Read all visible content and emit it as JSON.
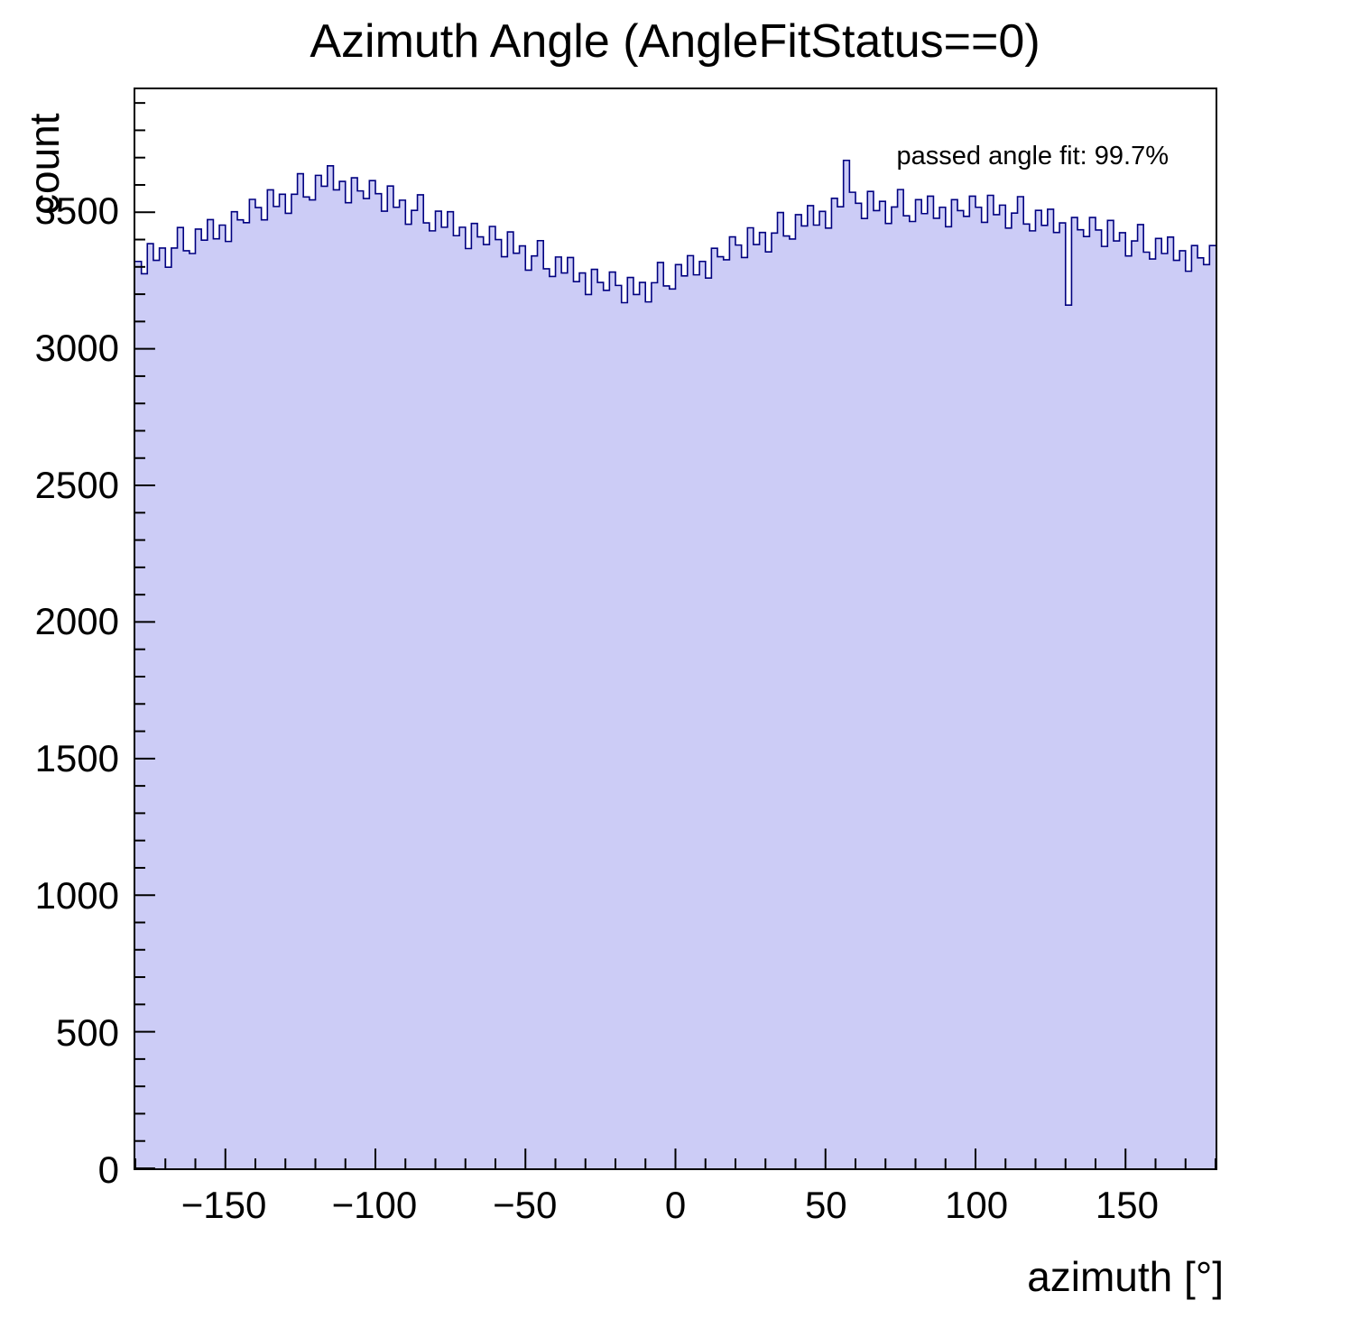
{
  "chart_data": {
    "type": "bar",
    "title": "Azimuth Angle (AngleFitStatus==0)",
    "xlabel": "azimuth [°]",
    "ylabel": "count",
    "annotation": "passed angle fit: 99.7%",
    "xlim": [
      -180,
      180
    ],
    "ylim": [
      0,
      3950
    ],
    "grid": false,
    "legend_position": "none",
    "fill_color": "#ccccf6",
    "line_color": "#000080",
    "x_start": -180,
    "bin_width": 2,
    "values": [
      3320,
      3275,
      3385,
      3324,
      3369,
      3299,
      3369,
      3444,
      3359,
      3349,
      3438,
      3398,
      3473,
      3403,
      3453,
      3393,
      3502,
      3472,
      3462,
      3547,
      3517,
      3472,
      3582,
      3521,
      3566,
      3496,
      3566,
      3641,
      3556,
      3545,
      3635,
      3595,
      3670,
      3582,
      3613,
      3535,
      3626,
      3578,
      3550,
      3616,
      3568,
      3504,
      3596,
      3518,
      3544,
      3456,
      3507,
      3564,
      3461,
      3432,
      3504,
      3445,
      3502,
      3414,
      3445,
      3367,
      3459,
      3410,
      3382,
      3448,
      3400,
      3337,
      3428,
      3350,
      3377,
      3288,
      3340,
      3396,
      3293,
      3265,
      3336,
      3278,
      3334,
      3246,
      3278,
      3199,
      3291,
      3243,
      3214,
      3281,
      3232,
      3169,
      3261,
      3199,
      3243,
      3172,
      3242,
      3316,
      3230,
      3219,
      3308,
      3267,
      3341,
      3271,
      3320,
      3259,
      3368,
      3337,
      3326,
      3410,
      3380,
      3334,
      3443,
      3382,
      3426,
      3355,
      3424,
      3499,
      3413,
      3402,
      3491,
      3450,
      3524,
      3453,
      3503,
      3442,
      3551,
      3520,
      3690,
      3573,
      3533,
      3477,
      3576,
      3506,
      3540,
      3459,
      3519,
      3583,
      3487,
      3466,
      3546,
      3495,
      3559,
      3478,
      3518,
      3447,
      3546,
      3506,
      3485,
      3559,
      3518,
      3463,
      3562,
      3491,
      3526,
      3442,
      3497,
      3557,
      3457,
      3432,
      3507,
      3452,
      3511,
      3426,
      3461,
      3160,
      3481,
      3436,
      3411,
      3481,
      3435,
      3375,
      3470,
      3395,
      3425,
      3340,
      3395,
      3455,
      3354,
      3329,
      3404,
      3349,
      3409,
      3324,
      3359,
      3284,
      3378,
      3333,
      3308,
      3378
    ],
    "x_major_ticks": [
      -150,
      -100,
      -50,
      0,
      50,
      100,
      150
    ],
    "x_tick_labels": [
      "−150",
      "−100",
      "−50",
      "0",
      "50",
      "100",
      "150"
    ],
    "x_minor_step": 10,
    "y_major_ticks": [
      0,
      500,
      1000,
      1500,
      2000,
      2500,
      3000,
      3500
    ],
    "y_tick_labels": [
      "0",
      "500",
      "1000",
      "1500",
      "2000",
      "2500",
      "3000",
      "3500"
    ],
    "y_minor_step": 100
  }
}
